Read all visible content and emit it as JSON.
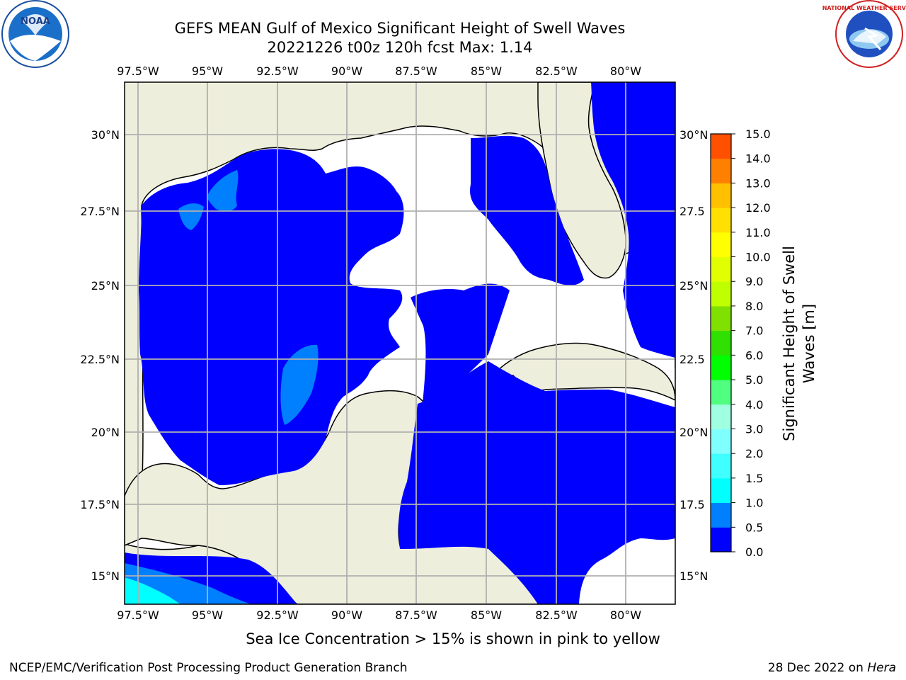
{
  "header": {
    "title": "GEFS MEAN Gulf of Mexico Significant Height of Swell Waves",
    "subtitle": "20221226 t00z 120h fcst   Max: 1.14"
  },
  "logos": {
    "left": {
      "name": "noaa-logo",
      "text": "NOAA"
    },
    "right": {
      "name": "nws-logo",
      "text": "NATIONAL WEATHER SERVICE"
    }
  },
  "map": {
    "lon_labels": [
      "97.5°W",
      "95°W",
      "92.5°W",
      "90°W",
      "87.5°W",
      "85°W",
      "82.5°W",
      "80°W"
    ],
    "lat_labels_left": [
      "30°N",
      "27.5°N",
      "25°N",
      "22.5°N",
      "20°N",
      "17.5°N",
      "15°N"
    ],
    "lat_labels_right": [
      "30°N",
      "27.5",
      "25°N",
      "22.5",
      "20°N",
      "17.5",
      "15°N"
    ],
    "colors": {
      "land": "#eeeedc",
      "sea_no_swell": "#ffffff",
      "swell_0_0_5": "#0000ff",
      "swell_0_5_1_0": "#0080ff",
      "swell_1_0_1_5": "#00ffff",
      "grid": "#b0b0b0"
    }
  },
  "colorbar": {
    "label": "Significant Height of Swell Waves [m]",
    "ticks": [
      "15.0",
      "14.0",
      "13.0",
      "12.0",
      "11.0",
      "10.0",
      "9.0",
      "8.0",
      "7.0",
      "6.0",
      "5.0",
      "4.0",
      "3.0",
      "2.0",
      "1.5",
      "1.0",
      "0.5",
      "0.0"
    ],
    "colors": [
      "#0000ff",
      "#0080ff",
      "#00ffff",
      "#40ffff",
      "#80ffff",
      "#a0ffe0",
      "#50ff80",
      "#00ff00",
      "#30e000",
      "#80e000",
      "#c0ff00",
      "#e0ff00",
      "#ffff00",
      "#ffe000",
      "#ffc000",
      "#ff8000",
      "#ff5000",
      "#ff2000",
      "#ff0000"
    ]
  },
  "footer": {
    "note": "Sea Ice Concentration > 15% is shown in pink to yellow",
    "credit": "NCEP/EMC/Verification Post Processing Product Generation Branch",
    "date": "28 Dec 2022 on ",
    "host": "Hera"
  }
}
